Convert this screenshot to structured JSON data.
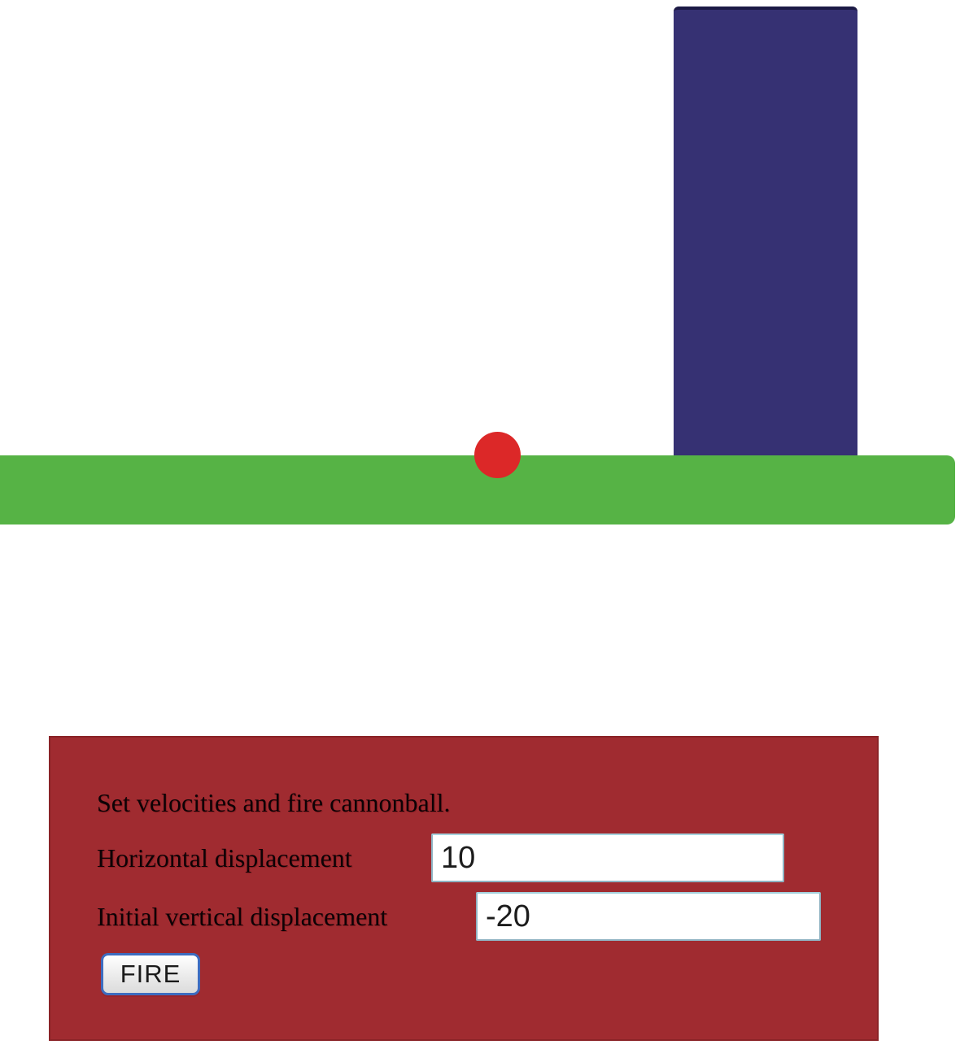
{
  "scene": {
    "ground_color": "#56b345",
    "tower_color": "#363173",
    "ball_color": "#dc2828"
  },
  "panel": {
    "background_color": "#a02b30",
    "instruction": "Set velocities and fire cannonball.",
    "fields": [
      {
        "label": "Horizontal displacement",
        "value": "10"
      },
      {
        "label": "Initial vertical displacement",
        "value": "-20"
      }
    ],
    "fire_button_label": "FIRE"
  }
}
